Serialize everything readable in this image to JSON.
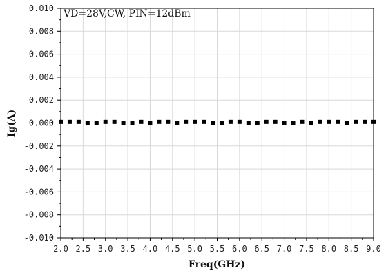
{
  "chart_data": {
    "type": "scatter",
    "title": "",
    "annotation": "VD=28V,CW, PIN=12dBm",
    "xlabel": "Freq(GHz)",
    "ylabel": "Ig(A)",
    "xlim": [
      2.0,
      9.0
    ],
    "ylim": [
      -0.01,
      0.01
    ],
    "xticks": [
      "2.0",
      "2.5",
      "3.0",
      "3.5",
      "4.0",
      "4.5",
      "5.0",
      "5.5",
      "6.0",
      "6.5",
      "7.0",
      "7.5",
      "8.0",
      "8.5",
      "9.0"
    ],
    "yticks": [
      "0.010",
      "0.008",
      "0.006",
      "0.004",
      "0.002",
      "0.000",
      "-0.002",
      "-0.004",
      "-0.006",
      "-0.008",
      "-0.010"
    ],
    "grid": true,
    "legend": "none",
    "marker_color": "#000000",
    "grid_color": "#d8d8d8",
    "series": [
      {
        "x": [
          2.0,
          2.2,
          2.4,
          2.6,
          2.8,
          3.0,
          3.2,
          3.4,
          3.6,
          3.8,
          4.0,
          4.2,
          4.4,
          4.6,
          4.8,
          5.0,
          5.2,
          5.4,
          5.6,
          5.8,
          6.0,
          6.2,
          6.4,
          6.6,
          6.8,
          7.0,
          7.2,
          7.4,
          7.6,
          7.8,
          8.0,
          8.2,
          8.4,
          8.6,
          8.8,
          9.0
        ],
        "values": [
          0.0001,
          0.0001,
          0.0001,
          0.0,
          0.0,
          0.0001,
          0.0001,
          0.0,
          0.0,
          0.0001,
          0.0,
          0.0001,
          0.0001,
          0.0,
          0.0001,
          0.0001,
          0.0001,
          0.0,
          0.0,
          0.0001,
          0.0001,
          0.0,
          0.0,
          0.0001,
          0.0001,
          0.0,
          0.0,
          0.0001,
          0.0,
          0.0001,
          0.0001,
          0.0001,
          0.0,
          0.0001,
          0.0001,
          0.0001
        ]
      }
    ]
  }
}
